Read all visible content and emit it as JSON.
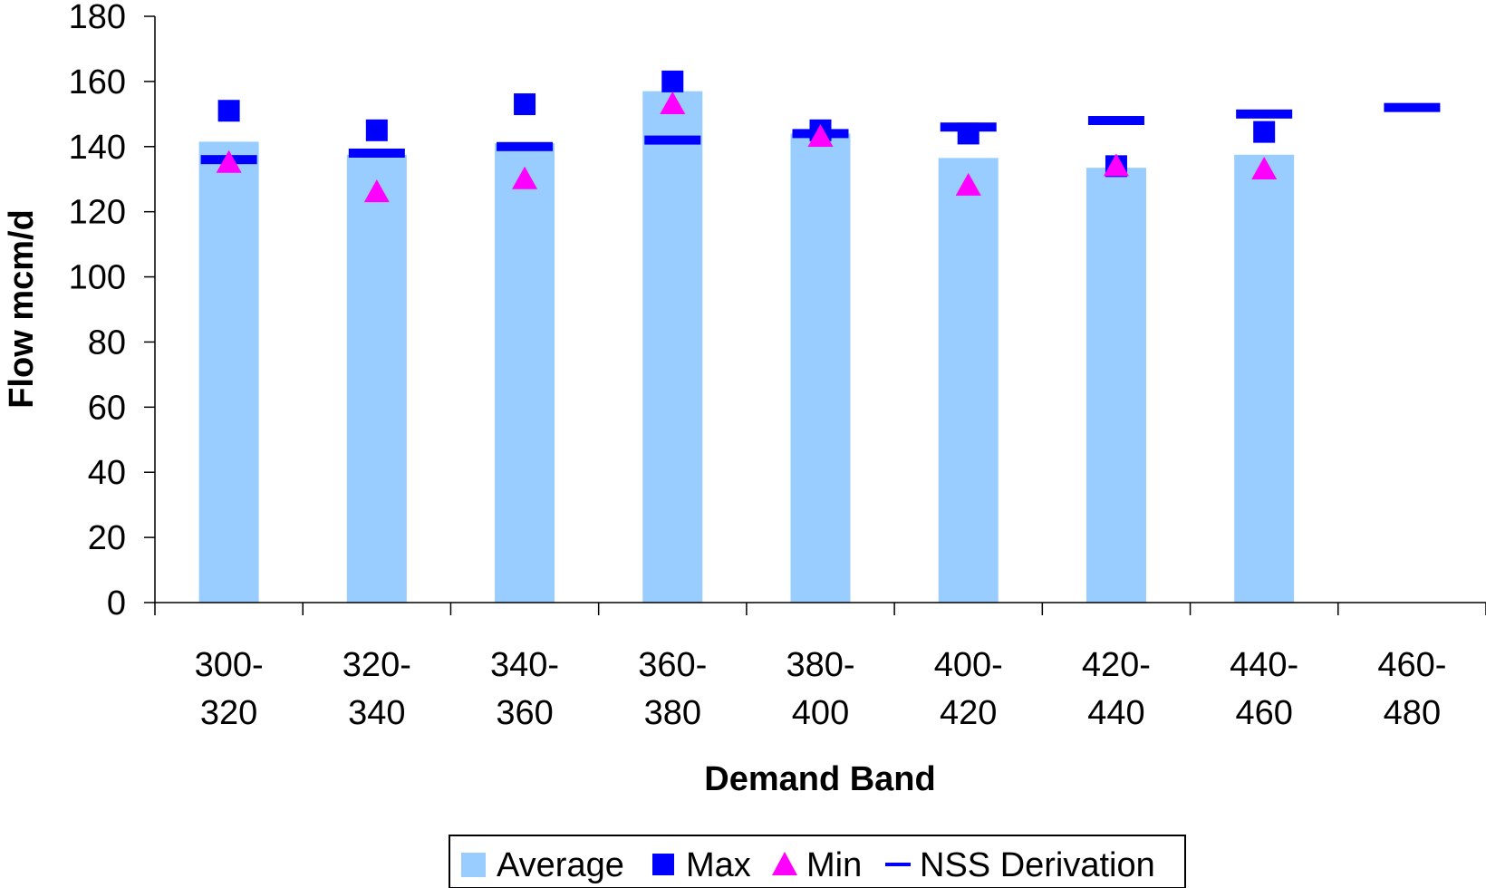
{
  "chart_data": {
    "type": "bar",
    "title": "",
    "xlabel": "Demand Band",
    "ylabel": "Flow mcm/d",
    "ylim": [
      0,
      180
    ],
    "y_ticks": [
      0,
      20,
      40,
      60,
      80,
      100,
      120,
      140,
      160,
      180
    ],
    "categories": [
      [
        "300-",
        "320"
      ],
      [
        "320-",
        "340"
      ],
      [
        "340-",
        "360"
      ],
      [
        "360-",
        "380"
      ],
      [
        "380-",
        "400"
      ],
      [
        "400-",
        "420"
      ],
      [
        "420-",
        "440"
      ],
      [
        "440-",
        "460"
      ],
      [
        "460-",
        "480"
      ]
    ],
    "grid": false,
    "legend_position": "bottom",
    "series": [
      {
        "name": "Average",
        "kind": "bar",
        "color": "#99ccff",
        "values": [
          141.5,
          137.5,
          141,
          157,
          144,
          136.5,
          133.5,
          137.5,
          null
        ]
      },
      {
        "name": "Max",
        "kind": "square-marker",
        "color": "#0000ff",
        "values": [
          151,
          145,
          153,
          160,
          145,
          144,
          134,
          144.5,
          null
        ]
      },
      {
        "name": "Min",
        "kind": "triangle-marker",
        "color": "#ff00ff",
        "values": [
          135,
          126,
          130,
          153,
          143,
          128,
          134,
          133,
          null
        ]
      },
      {
        "name": "NSS Derivation",
        "kind": "dash-marker",
        "color": "#0000ff",
        "values": [
          136,
          138,
          140,
          142,
          144,
          146,
          148,
          150,
          152
        ]
      }
    ]
  }
}
